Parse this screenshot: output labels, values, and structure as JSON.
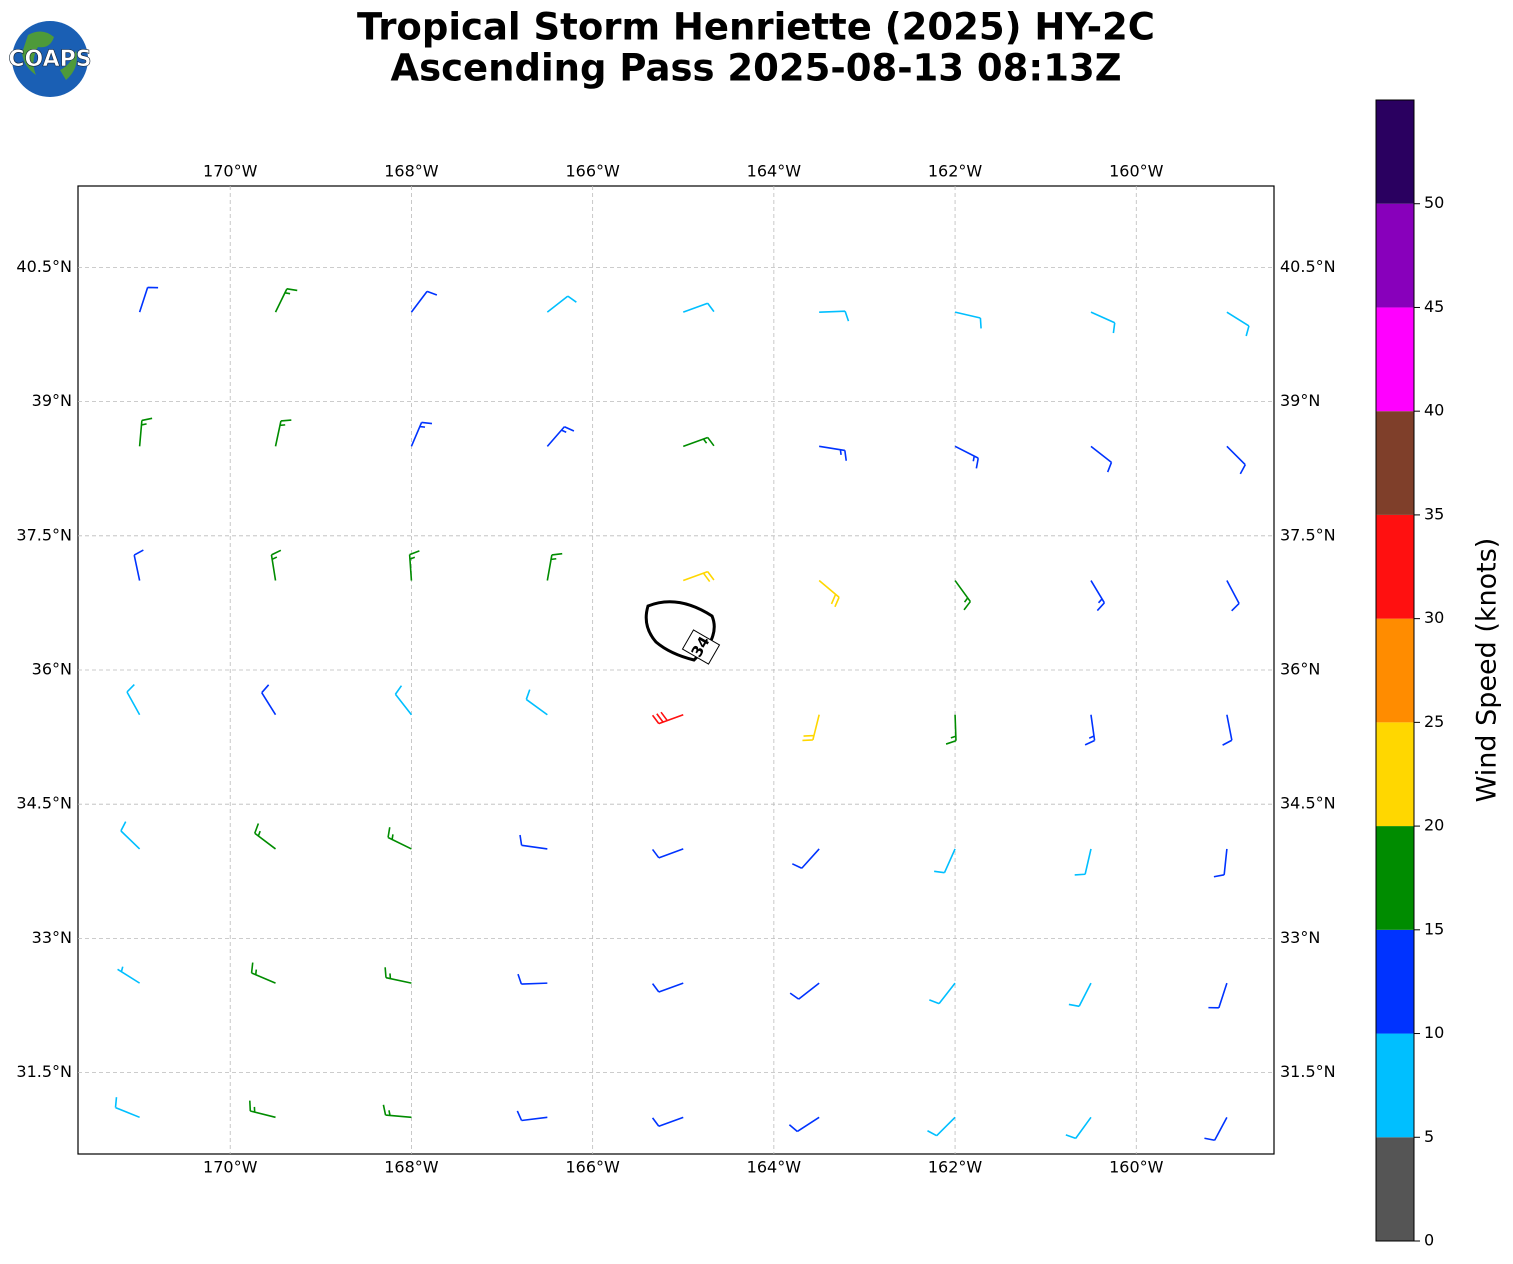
{
  "chart_data": {
    "type": "barbs",
    "title": "Tropical Storm Henriette (2025) HY-2C",
    "subtitle": "Ascending Pass 2025-08-13 08:13Z",
    "logo_text": "COAPS",
    "contour_level": 34,
    "xlim": [
      -171.68,
      -158.48
    ],
    "ylim": [
      30.59,
      41.41
    ],
    "grid": true,
    "xticks": [
      {
        "value": -170,
        "label": "170°W"
      },
      {
        "value": -168,
        "label": "168°W"
      },
      {
        "value": -166,
        "label": "166°W"
      },
      {
        "value": -164,
        "label": "164°W"
      },
      {
        "value": -162,
        "label": "162°W"
      },
      {
        "value": -160,
        "label": "160°W"
      }
    ],
    "yticks": [
      {
        "value": 31.5,
        "label": "31.5°N"
      },
      {
        "value": 33,
        "label": "33°N"
      },
      {
        "value": 34.5,
        "label": "34.5°N"
      },
      {
        "value": 36,
        "label": "36°N"
      },
      {
        "value": 37.5,
        "label": "37.5°N"
      },
      {
        "value": 39,
        "label": "39°N"
      },
      {
        "value": 40.5,
        "label": "40.5°N"
      }
    ],
    "barbs": {
      "lon": [
        -171,
        -169.5,
        -168,
        -166.5,
        -165,
        -163.5,
        -162,
        -160.5,
        -159,
        -171,
        -169.5,
        -168,
        -166.5,
        -165,
        -163.5,
        -162,
        -160.5,
        -159,
        -171,
        -169.5,
        -168,
        -166.5,
        -165,
        -163.5,
        -162,
        -160.5,
        -159,
        -171,
        -169.5,
        -168,
        -166.5,
        -165,
        -163.5,
        -162,
        -160.5,
        -159,
        -171,
        -169.5,
        -168,
        -166.5,
        -165,
        -163.5,
        -162,
        -160.5,
        -159,
        -171,
        -169.5,
        -168,
        -166.5,
        -165,
        -163.5,
        -162,
        -160.5,
        -159,
        -171,
        -169.5,
        -168,
        -166.5,
        -165,
        -163.5,
        -162,
        -160.5,
        -159
      ],
      "lat": [
        40,
        40,
        40,
        40,
        40,
        40,
        40,
        40,
        40,
        38.5,
        38.5,
        38.5,
        38.5,
        38.5,
        38.5,
        38.5,
        38.5,
        38.5,
        37,
        37,
        37,
        37,
        37,
        37,
        37,
        37,
        37,
        35.5,
        35.5,
        35.5,
        35.5,
        35.5,
        35.5,
        35.5,
        35.5,
        35.5,
        34,
        34,
        34,
        34,
        34,
        34,
        34,
        34,
        34,
        32.5,
        32.5,
        32.5,
        32.5,
        32.5,
        32.5,
        32.5,
        32.5,
        32.5,
        31,
        31,
        31,
        31,
        31,
        31,
        31,
        31,
        31
      ],
      "speed": [
        12,
        17,
        12,
        8,
        8,
        8,
        8,
        8,
        8,
        17,
        17,
        13,
        13,
        17,
        13,
        13,
        12,
        12,
        12,
        17,
        17,
        17,
        22,
        22,
        17,
        13,
        12,
        8,
        12,
        8,
        8,
        32,
        22,
        17,
        13,
        12,
        8,
        17,
        17,
        12,
        12,
        12,
        8,
        8,
        12,
        7,
        17,
        17,
        12,
        12,
        12,
        8,
        8,
        12,
        8,
        17,
        17,
        12,
        12,
        12,
        8,
        8,
        12
      ],
      "direction": [
        18,
        26,
        37,
        52,
        70,
        88,
        103,
        114,
        122,
        5,
        12,
        23,
        41,
        70,
        99,
        117,
        128,
        135,
        348,
        351,
        356,
        10,
        70,
        130,
        144,
        149,
        152,
        331,
        328,
        322,
        306,
        250,
        194,
        178,
        172,
        169,
        314,
        307,
        296,
        278,
        250,
        222,
        204,
        193,
        186,
        302,
        293,
        282,
        268,
        250,
        232,
        218,
        207,
        198,
        292,
        284,
        275,
        263,
        250,
        237,
        225,
        216,
        208
      ]
    },
    "colorbar": {
      "label": "Wind Speed (knots)",
      "lim": [
        0,
        55
      ],
      "bounds": [
        0,
        5,
        10,
        15,
        20,
        25,
        30,
        35,
        40,
        45,
        50,
        55
      ],
      "colors": [
        "#555555",
        "#00bfff",
        "#0033ff",
        "#008c00",
        "#ffd700",
        "#ff8c00",
        "#ff1010",
        "#7f3f2a",
        "#ff00ff",
        "#8800bb",
        "#2a0060"
      ],
      "ticks": [
        0,
        5,
        10,
        15,
        20,
        25,
        30,
        35,
        40,
        45,
        50
      ]
    }
  }
}
